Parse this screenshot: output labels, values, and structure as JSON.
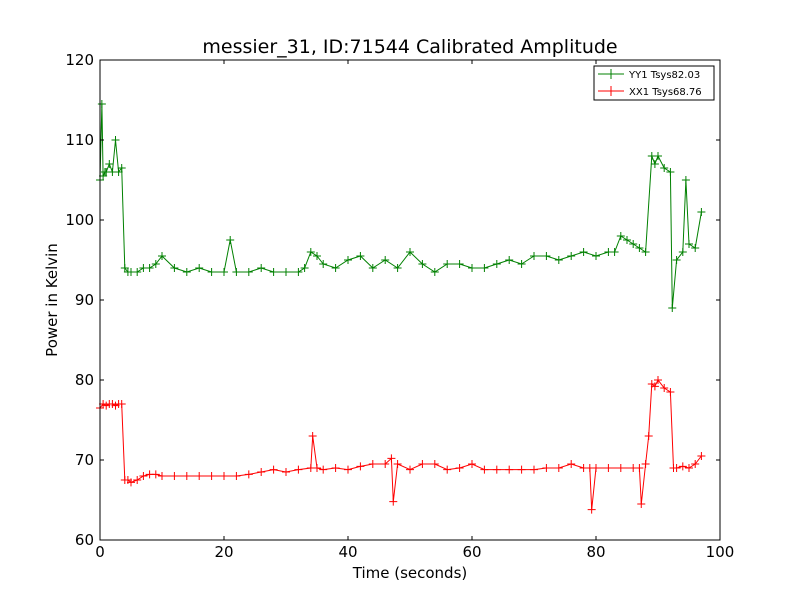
{
  "chart_data": {
    "type": "line",
    "title": "messier_31, ID:71544 Calibrated Amplitude",
    "xlabel": "Time (seconds)",
    "ylabel": "Power in Kelvin",
    "xlim": [
      0,
      100
    ],
    "ylim": [
      60,
      120
    ],
    "xticks": [
      0,
      20,
      40,
      60,
      80,
      100
    ],
    "xtick_labels": [
      "0",
      "20",
      "40",
      "60",
      "80",
      "100"
    ],
    "yticks": [
      60,
      70,
      80,
      90,
      100,
      110,
      120
    ],
    "ytick_labels": [
      "60",
      "70",
      "80",
      "90",
      "100",
      "110",
      "120"
    ],
    "grid": false,
    "legend_position": "top-right",
    "marker": "+",
    "series": [
      {
        "name": "YY1 Tsys82.03",
        "color": "#008000",
        "x": [
          0,
          0.3,
          0.5,
          0.8,
          1,
          1.5,
          2,
          2.5,
          3,
          3.5,
          4,
          4.5,
          5,
          6,
          7,
          8,
          9,
          10,
          12,
          14,
          16,
          18,
          20,
          21,
          22,
          24,
          26,
          28,
          30,
          32,
          33,
          34,
          35,
          36,
          38,
          40,
          42,
          44,
          46,
          48,
          50,
          52,
          54,
          56,
          58,
          60,
          62,
          64,
          66,
          68,
          70,
          72,
          74,
          76,
          78,
          80,
          82,
          83,
          84,
          85,
          86,
          87,
          88,
          89,
          89.5,
          90,
          91,
          92,
          92.3,
          93,
          94,
          94.5,
          95,
          96,
          97
        ],
        "y": [
          105,
          114.5,
          105.5,
          106,
          106,
          107,
          106,
          110,
          106,
          106.5,
          94,
          93.5,
          93.5,
          93.5,
          94,
          94,
          94.5,
          95.5,
          94,
          93.5,
          94,
          93.5,
          93.5,
          97.5,
          93.5,
          93.5,
          94,
          93.5,
          93.5,
          93.5,
          94,
          96,
          95.5,
          94.5,
          94,
          95,
          95.5,
          94,
          95,
          94,
          96,
          94.5,
          93.5,
          94.5,
          94.5,
          94,
          94,
          94.5,
          95,
          94.5,
          95.5,
          95.5,
          95,
          95.5,
          96,
          95.5,
          96,
          96,
          98,
          97.5,
          97,
          96.5,
          96,
          108,
          107,
          108,
          106.5,
          106,
          89,
          95,
          96,
          105,
          97,
          96.5,
          101
        ]
      },
      {
        "name": "XX1 Tsys68.76",
        "color": "#ff0000",
        "x": [
          0,
          0.5,
          1,
          1.5,
          2,
          2.5,
          3,
          3.5,
          4,
          4.5,
          5,
          6,
          7,
          8,
          9,
          10,
          12,
          14,
          16,
          18,
          20,
          22,
          24,
          26,
          28,
          30,
          32,
          34,
          34.3,
          35,
          36,
          38,
          40,
          42,
          44,
          46,
          47,
          47.3,
          48,
          50,
          52,
          54,
          56,
          58,
          60,
          62,
          64,
          66,
          68,
          70,
          72,
          74,
          76,
          78,
          79,
          79.3,
          80,
          82,
          84,
          86,
          87,
          87.3,
          88,
          88.5,
          89,
          89.5,
          90,
          91,
          92,
          92.5,
          93,
          94,
          95,
          96,
          97
        ],
        "y": [
          76.5,
          77,
          76.8,
          77,
          77,
          76.8,
          77,
          77,
          67.5,
          67.5,
          67.2,
          67.5,
          68,
          68.2,
          68.2,
          68,
          68,
          68,
          68,
          68,
          68,
          68,
          68.2,
          68.5,
          68.8,
          68.5,
          68.8,
          69,
          73,
          69,
          68.8,
          69,
          68.8,
          69.2,
          69.5,
          69.5,
          70.2,
          64.8,
          69.5,
          68.8,
          69.5,
          69.5,
          68.8,
          69,
          69.5,
          68.8,
          68.8,
          68.8,
          68.8,
          68.8,
          69,
          69,
          69.5,
          69,
          69,
          63.8,
          69,
          69,
          69,
          69,
          69,
          64.5,
          69.5,
          73,
          79.5,
          79.2,
          80,
          79,
          78.5,
          69,
          69,
          69.2,
          69,
          69.5,
          70.5
        ]
      }
    ]
  }
}
